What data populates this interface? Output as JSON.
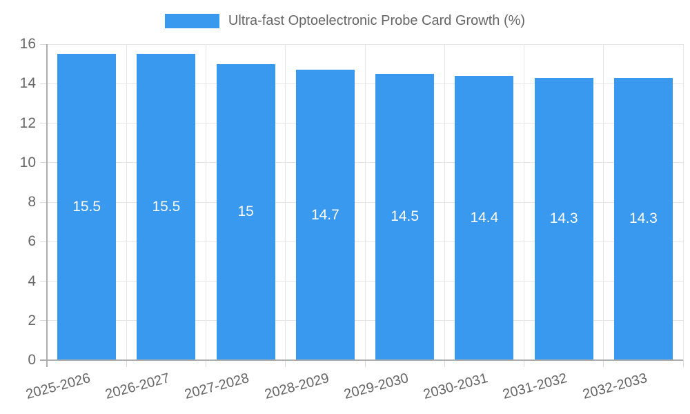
{
  "legend": {
    "label": "Ultra-fast Optoelectronic Probe Card Growth (%)",
    "position": "top"
  },
  "chart_data": {
    "type": "bar",
    "title": "",
    "xlabel": "",
    "ylabel": "",
    "categories": [
      "2025-2026",
      "2026-2027",
      "2027-2028",
      "2028-2029",
      "2029-2030",
      "2030-2031",
      "2031-2032",
      "2032-2033"
    ],
    "series": [
      {
        "name": "Ultra-fast Optoelectronic Probe Card Growth (%)",
        "values": [
          15.5,
          15.5,
          15,
          14.7,
          14.5,
          14.4,
          14.3,
          14.3
        ]
      }
    ],
    "data_labels": [
      "15.5",
      "15.5",
      "15",
      "14.7",
      "14.5",
      "14.4",
      "14.3",
      "14.3"
    ],
    "ylim": [
      0,
      16
    ],
    "ytick_step": 2,
    "ytick_labels": [
      "0",
      "2",
      "4",
      "6",
      "8",
      "10",
      "12",
      "14",
      "16"
    ],
    "grid": true,
    "legend_position": "top",
    "x_label_rotation_deg": -15
  },
  "colors": {
    "bar": "#3999EE",
    "data_label": "#FFFFFF",
    "axis_text": "#666666",
    "gridline": "#E6E6E6",
    "tick": "#DADADA",
    "axis_line": "#ADADAD",
    "background": "#FFFFFF"
  }
}
